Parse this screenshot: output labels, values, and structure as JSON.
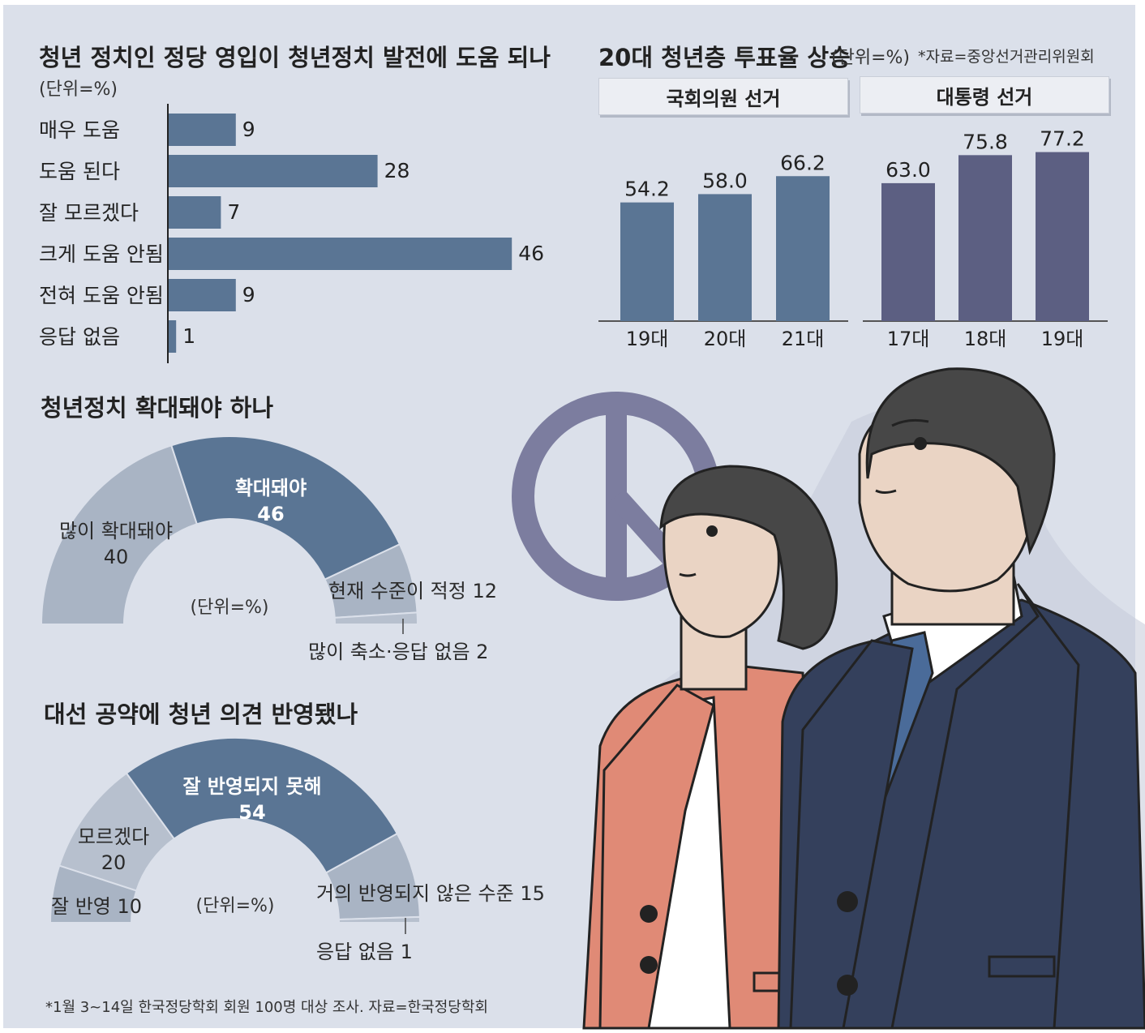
{
  "chart_data": [
    {
      "type": "bar",
      "orientation": "horizontal",
      "title": "청년 정치인 정당 영입이 청년정치 발전에 도움 되나",
      "unit": "(단위=%)",
      "categories": [
        "매우 도움",
        "도움 된다",
        "잘 모르겠다",
        "크게 도움 안됨",
        "전혀 도움 안됨",
        "응답 없음"
      ],
      "values": [
        9,
        28,
        7,
        46,
        9,
        1
      ],
      "value_labels": [
        "9",
        "28",
        "7",
        "46",
        "9",
        "1"
      ],
      "color": "#5a7594"
    },
    {
      "type": "bar",
      "title": "20대 청년층 투표율 상승",
      "unit": "(단위=%)",
      "source": "*자료=중앙선거관리위원회",
      "ylim": [
        0,
        90
      ],
      "panels": [
        {
          "label": "국회의원 선거",
          "categories": [
            "19대",
            "20대",
            "21대"
          ],
          "values": [
            54.2,
            58.0,
            66.2
          ],
          "value_labels": [
            "54.2",
            "58.0",
            "66.2"
          ],
          "color": "#5a7594"
        },
        {
          "label": "대통령 선거",
          "categories": [
            "17대",
            "18대",
            "19대"
          ],
          "values": [
            63.0,
            75.8,
            77.2
          ],
          "value_labels": [
            "63.0",
            "75.8",
            "77.2"
          ],
          "color": "#5c5f82"
        }
      ]
    },
    {
      "type": "pie",
      "shape": "half-donut",
      "title": "청년정치 확대돼야 하나",
      "unit": "(단위=%)",
      "slices": [
        {
          "label": "많이 확대돼야",
          "value": 40,
          "value_label": "40",
          "color": "#a9b4c4"
        },
        {
          "label": "확대돼야",
          "value": 46,
          "value_label": "46",
          "color": "#5a7594"
        },
        {
          "label": "현재 수준이 적정",
          "value": 12,
          "value_label": "12",
          "color": "#a9b4c4"
        },
        {
          "label": "많이 축소·응답 없음",
          "value": 2,
          "value_label": "2",
          "color": "#b7c0ce"
        }
      ],
      "outer_labels": {
        "slice2": "현재 수준이 적정 12",
        "slice3": "많이 축소·응답 없음 2"
      }
    },
    {
      "type": "pie",
      "shape": "half-donut",
      "title": "대선 공약에 청년 의견 반영됐나",
      "unit": "(단위=%)",
      "slices": [
        {
          "label": "잘 반영",
          "value": 10,
          "value_label": "10",
          "color": "#a9b4c4"
        },
        {
          "label": "모르겠다",
          "value": 20,
          "value_label": "20",
          "color": "#b7c0ce"
        },
        {
          "label": "잘 반영되지 못해",
          "value": 54,
          "value_label": "54",
          "color": "#5a7594"
        },
        {
          "label": "거의 반영되지 않은 수준",
          "value": 15,
          "value_label": "15",
          "color": "#a9b4c4"
        },
        {
          "label": "응답 없음",
          "value": 1,
          "value_label": "1",
          "color": "#b7c0ce"
        }
      ],
      "outer_labels": {
        "slice0": "잘 반영 10",
        "slice3": "거의 반영되지 않은 수준 15",
        "slice4": "응답 없음 1"
      }
    }
  ],
  "footnote": "*1월 3~14일 한국정당학회 회원 100명 대상 조사. 자료=한국정당학회",
  "illustration": {
    "subjects": "young-woman-and-man-icon",
    "ballot_mark": "ballot-stamp-icon",
    "colors": {
      "jacket_woman": "#e08a76",
      "suit_man": "#34405c",
      "hair": "#474747",
      "skin": "#ead4c4",
      "stamp": "#7c7d9f"
    }
  }
}
